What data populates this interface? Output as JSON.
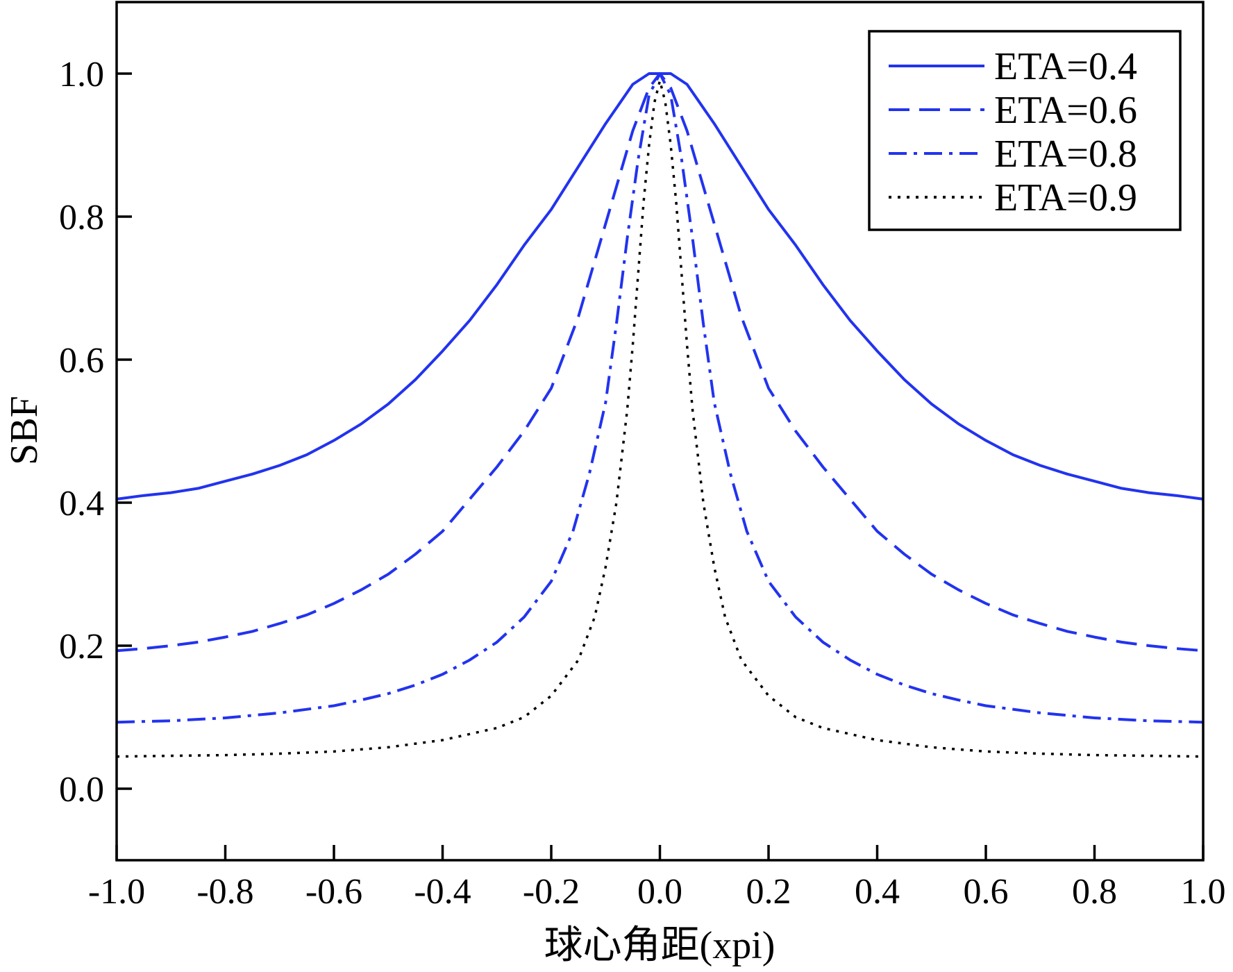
{
  "chart_data": {
    "type": "line",
    "title": "",
    "xlabel": "球心角距(xpi)",
    "ylabel": "SBF",
    "xlim": [
      -1.0,
      1.0
    ],
    "ylim": [
      -0.1,
      1.1
    ],
    "xticks": [
      "-1.0",
      "-0.8",
      "-0.6",
      "-0.4",
      "-0.2",
      "0.0",
      "0.2",
      "0.4",
      "0.6",
      "0.8",
      "1.0"
    ],
    "yticks": [
      "0.0",
      "0.2",
      "0.4",
      "0.6",
      "0.8",
      "1.0"
    ],
    "grid": false,
    "legend_position": "top-right",
    "series": [
      {
        "name": "ETA=0.4",
        "style": "solid",
        "color": "#2233EE",
        "x": [
          0.0,
          0.02,
          0.05,
          0.1,
          0.15,
          0.2,
          0.25,
          0.3,
          0.35,
          0.4,
          0.45,
          0.5,
          0.55,
          0.6,
          0.65,
          0.7,
          0.75,
          0.8,
          0.85,
          0.9,
          0.95,
          1.0
        ],
        "y": [
          1.0,
          1.0,
          0.985,
          0.93,
          0.87,
          0.81,
          0.76,
          0.705,
          0.655,
          0.612,
          0.572,
          0.538,
          0.51,
          0.487,
          0.467,
          0.452,
          0.44,
          0.43,
          0.42,
          0.414,
          0.41,
          0.405
        ]
      },
      {
        "name": "ETA=0.6",
        "style": "dashed",
        "color": "#2233EE",
        "x": [
          0.0,
          0.02,
          0.05,
          0.1,
          0.15,
          0.2,
          0.25,
          0.3,
          0.35,
          0.4,
          0.45,
          0.5,
          0.55,
          0.6,
          0.65,
          0.7,
          0.75,
          0.8,
          0.85,
          0.9,
          0.95,
          1.0
        ],
        "y": [
          1.0,
          0.98,
          0.92,
          0.79,
          0.66,
          0.56,
          0.5,
          0.45,
          0.405,
          0.36,
          0.328,
          0.3,
          0.278,
          0.259,
          0.243,
          0.231,
          0.22,
          0.212,
          0.205,
          0.2,
          0.196,
          0.193
        ]
      },
      {
        "name": "ETA=0.8",
        "style": "dashdot",
        "color": "#2233EE",
        "x": [
          0.0,
          0.02,
          0.04,
          0.06,
          0.08,
          0.1,
          0.13,
          0.16,
          0.2,
          0.25,
          0.3,
          0.35,
          0.4,
          0.45,
          0.5,
          0.55,
          0.6,
          0.7,
          0.8,
          0.9,
          1.0
        ],
        "y": [
          1.0,
          0.97,
          0.88,
          0.77,
          0.65,
          0.54,
          0.44,
          0.36,
          0.29,
          0.24,
          0.205,
          0.18,
          0.16,
          0.145,
          0.133,
          0.124,
          0.116,
          0.106,
          0.099,
          0.095,
          0.093
        ]
      },
      {
        "name": "ETA=0.9",
        "style": "dotted",
        "color": "#000000",
        "x": [
          0.0,
          0.01,
          0.02,
          0.03,
          0.04,
          0.05,
          0.06,
          0.08,
          0.1,
          0.12,
          0.15,
          0.2,
          0.25,
          0.3,
          0.4,
          0.5,
          0.6,
          0.7,
          0.8,
          0.9,
          1.0
        ],
        "y": [
          0.99,
          0.96,
          0.9,
          0.82,
          0.72,
          0.62,
          0.53,
          0.4,
          0.31,
          0.24,
          0.18,
          0.13,
          0.1,
          0.085,
          0.068,
          0.058,
          0.052,
          0.049,
          0.047,
          0.046,
          0.045
        ]
      }
    ]
  }
}
